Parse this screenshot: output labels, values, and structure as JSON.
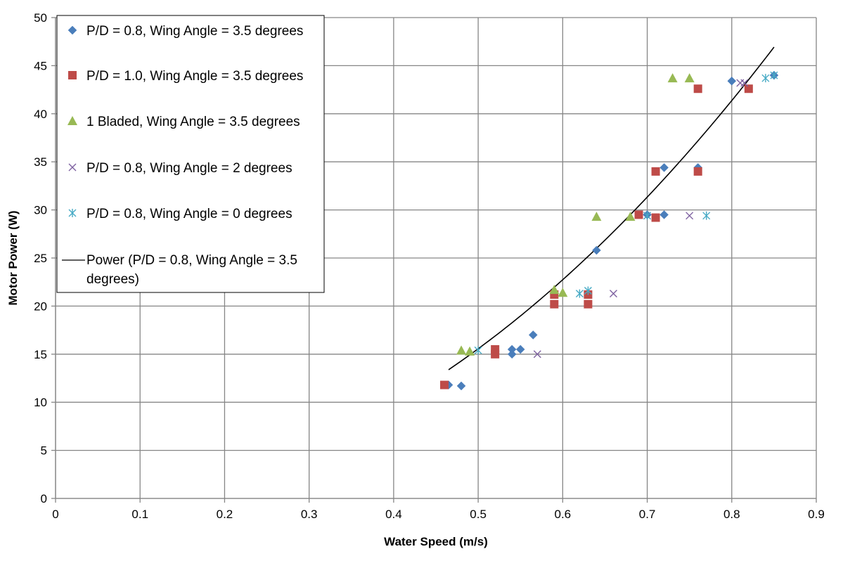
{
  "chart_data": {
    "type": "scatter",
    "title": "",
    "xlabel": "Water Speed (m/s)",
    "ylabel": "Motor Power (W)",
    "xlim": [
      0,
      0.9
    ],
    "ylim": [
      0,
      50
    ],
    "x_ticks": [
      "0",
      "0.1",
      "0.2",
      "0.3",
      "0.4",
      "0.5",
      "0.6",
      "0.7",
      "0.8",
      "0.9"
    ],
    "y_ticks": [
      "0",
      "5",
      "10",
      "15",
      "20",
      "25",
      "30",
      "35",
      "40",
      "45",
      "50"
    ],
    "grid": true,
    "legend_position": "top-left",
    "series": [
      {
        "name": "P/D = 0.8, Wing Angle = 3.5 degrees",
        "marker": "diamond",
        "color": "#4a7ebb",
        "points": [
          [
            0.465,
            11.8
          ],
          [
            0.48,
            11.7
          ],
          [
            0.54,
            15.5
          ],
          [
            0.54,
            15.0
          ],
          [
            0.55,
            15.5
          ],
          [
            0.565,
            17.0
          ],
          [
            0.64,
            25.8
          ],
          [
            0.7,
            29.5
          ],
          [
            0.72,
            29.5
          ],
          [
            0.72,
            34.4
          ],
          [
            0.76,
            34.4
          ],
          [
            0.8,
            43.4
          ],
          [
            0.85,
            44.0
          ]
        ]
      },
      {
        "name": "P/D = 1.0, Wing Angle = 3.5 degrees",
        "marker": "square",
        "color": "#be4b48",
        "points": [
          [
            0.46,
            11.8
          ],
          [
            0.52,
            15.5
          ],
          [
            0.52,
            15.0
          ],
          [
            0.59,
            21.2
          ],
          [
            0.59,
            20.2
          ],
          [
            0.63,
            21.2
          ],
          [
            0.63,
            20.2
          ],
          [
            0.69,
            29.5
          ],
          [
            0.71,
            29.2
          ],
          [
            0.71,
            34.0
          ],
          [
            0.76,
            34.0
          ],
          [
            0.76,
            42.6
          ],
          [
            0.82,
            42.6
          ]
        ]
      },
      {
        "name": "1 Bladed, Wing Angle = 3.5 degrees",
        "marker": "triangle",
        "color": "#98b954",
        "points": [
          [
            0.48,
            15.4
          ],
          [
            0.49,
            15.3
          ],
          [
            0.59,
            21.7
          ],
          [
            0.6,
            21.4
          ],
          [
            0.64,
            29.3
          ],
          [
            0.68,
            29.3
          ],
          [
            0.73,
            43.7
          ],
          [
            0.75,
            43.7
          ]
        ]
      },
      {
        "name": "P/D = 0.8, Wing Angle = 2 degrees",
        "marker": "x",
        "color": "#7d60a0",
        "points": [
          [
            0.57,
            15.0
          ],
          [
            0.66,
            21.3
          ],
          [
            0.7,
            29.4
          ],
          [
            0.75,
            29.4
          ],
          [
            0.81,
            43.2
          ],
          [
            0.815,
            43.2
          ]
        ]
      },
      {
        "name": "P/D = 0.8, Wing Angle = 0 degrees",
        "marker": "star",
        "color": "#46aac5",
        "points": [
          [
            0.5,
            15.4
          ],
          [
            0.62,
            21.3
          ],
          [
            0.63,
            21.6
          ],
          [
            0.7,
            29.4
          ],
          [
            0.77,
            29.4
          ],
          [
            0.84,
            43.7
          ],
          [
            0.85,
            44.0
          ]
        ]
      }
    ],
    "trendline": {
      "name": "Power (P/D = 0.8, Wing Angle = 3.5 degrees)",
      "type": "power",
      "color": "#000000",
      "x_range": [
        0.465,
        0.85
      ],
      "coefficient": 65.8,
      "exponent": 2.08
    },
    "legend_lines": {
      "s0": "P/D = 0.8, Wing Angle = 3.5 degrees",
      "s1": "P/D = 1.0, Wing Angle = 3.5 degrees",
      "s2": "1 Bladed, Wing Angle = 3.5 degrees",
      "s3": "P/D = 0.8, Wing Angle = 2 degrees",
      "s4": "P/D = 0.8, Wing Angle = 0 degrees",
      "trend_line1": "Power (P/D = 0.8, Wing Angle = 3.5",
      "trend_line2": "degrees)"
    }
  }
}
